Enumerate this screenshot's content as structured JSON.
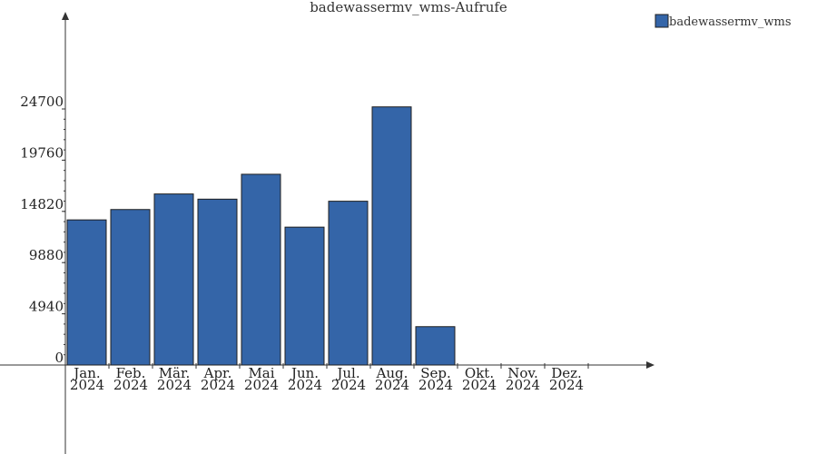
{
  "chart_data": {
    "type": "bar",
    "title": "badewassermv_wms-Aufrufe",
    "categories": [
      [
        "Jan.",
        "2024"
      ],
      [
        "Feb.",
        "2024"
      ],
      [
        "Mär.",
        "2024"
      ],
      [
        "Apr.",
        "2024"
      ],
      [
        "Mai",
        "2024"
      ],
      [
        "Jun.",
        "2024"
      ],
      [
        "Jul.",
        "2024"
      ],
      [
        "Aug.",
        "2024"
      ],
      [
        "Sep.",
        "2024"
      ],
      [
        "Okt.",
        "2024"
      ],
      [
        "Nov.",
        "2024"
      ],
      [
        "Dez.",
        "2024"
      ]
    ],
    "series": [
      {
        "name": "badewassermv_wms",
        "color": "#3465a8",
        "values": [
          14000,
          15000,
          16500,
          16000,
          18400,
          13300,
          15800,
          24900,
          3700,
          0,
          0,
          0
        ]
      }
    ],
    "y_ticks": [
      "0",
      "4940",
      "9880",
      "14820",
      "19760",
      "24700"
    ],
    "ylim": [
      0,
      24700
    ],
    "grid": false,
    "legend": "top-right"
  }
}
